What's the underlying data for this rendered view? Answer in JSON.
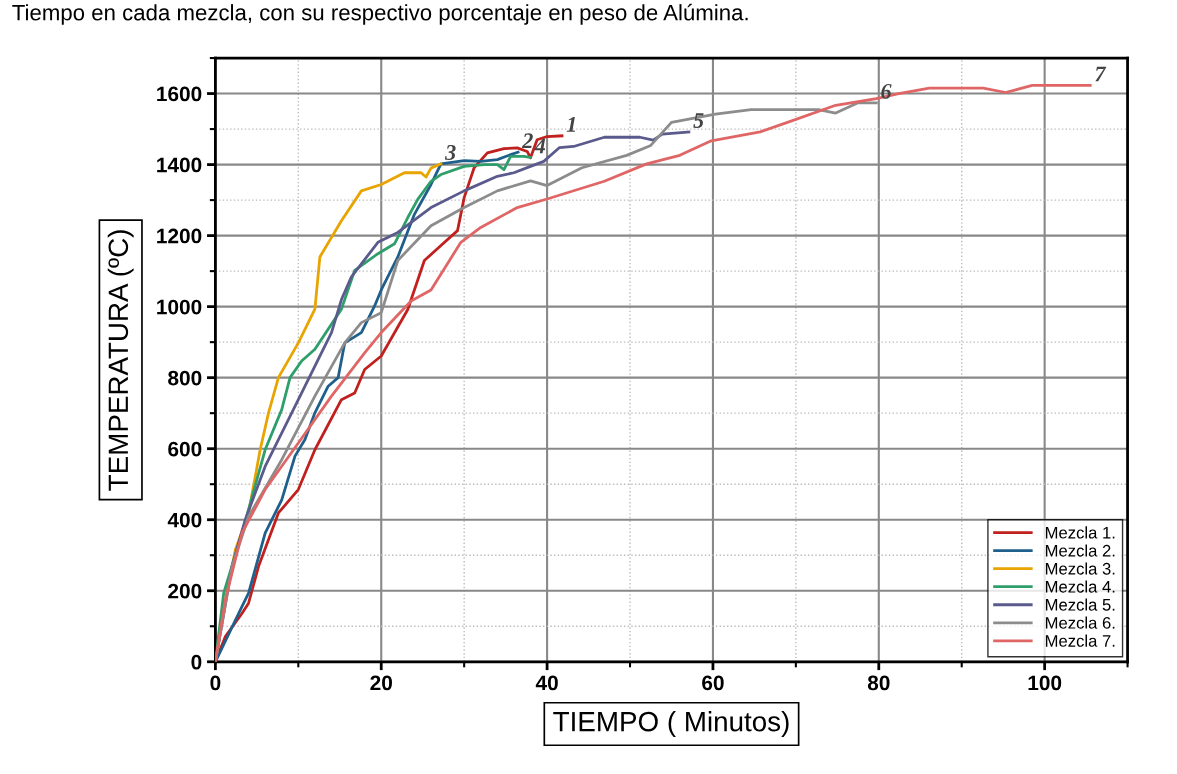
{
  "chart_data": {
    "type": "line",
    "xlabel": "TIEMPO ( Minutos)",
    "ylabel": "TEMPERATURA (ºC)",
    "annotations": [
      "Tiempo en cada mezcla, con su respectivo porcentaje en peso de Alúmina.",
      {
        "text": "1",
        "x": 41.8,
        "y": 1481
      },
      {
        "text": "2",
        "x": 36.5,
        "y": 1435
      },
      {
        "text": "3",
        "x": 27.2,
        "y": 1402
      },
      {
        "text": "4",
        "x": 38,
        "y": 1420
      },
      {
        "text": "5",
        "x": 57.1,
        "y": 1492
      },
      {
        "text": "6",
        "x": 79.7,
        "y": 1574
      },
      {
        "text": "7",
        "x": 105.5,
        "y": 1623
      }
    ],
    "xlim": [
      0,
      110
    ],
    "ylim": [
      0,
      1700
    ],
    "xticks": [
      0,
      20,
      40,
      60,
      80,
      100
    ],
    "yticks": [
      0,
      200,
      400,
      600,
      800,
      1000,
      1200,
      1400,
      1600
    ],
    "grid": true,
    "legend": "bottom right",
    "marker": "none",
    "line_style": "solid",
    "series": [
      {
        "name": "Mezcla 1.",
        "color": "#c0201e",
        "x": [
          0,
          1.2,
          3.2,
          4,
          5.2,
          7.6,
          10,
          12,
          15.2,
          16.8,
          18,
          20,
          23.2,
          25.2,
          27.2,
          29.2,
          30,
          31.2,
          32.8,
          34.8,
          36.4,
          37.6,
          38,
          38.8,
          40,
          41.8
        ],
        "values": [
          0,
          71,
          136,
          165,
          268,
          419,
          485,
          597,
          738,
          757,
          823,
          861,
          992,
          1130,
          1172,
          1214,
          1307,
          1391,
          1433,
          1445,
          1447,
          1437,
          1419,
          1470,
          1479,
          1481
        ]
      },
      {
        "name": "Mezcla 2.",
        "color": "#1f5f8b",
        "x": [
          0,
          3.2,
          4,
          6,
          8,
          9.6,
          10.8,
          12,
          13.6,
          14.8,
          15.6,
          17.6,
          19.2,
          20,
          22,
          24,
          26,
          27.2,
          30,
          32,
          34,
          35.6,
          36.5
        ],
        "values": [
          0,
          155,
          193,
          362,
          456,
          579,
          626,
          701,
          776,
          800,
          898,
          927,
          1002,
          1047,
          1140,
          1260,
          1344,
          1402,
          1411,
          1409,
          1414,
          1428,
          1435
        ]
      },
      {
        "name": "Mezcla 3.",
        "color": "#e8a400",
        "x": [
          0,
          1.2,
          2.4,
          4,
          5.4,
          6.4,
          7.6,
          10,
          12,
          12.6,
          15.2,
          17.6,
          20,
          22.8,
          24.8,
          25.4,
          26,
          27.2
        ],
        "values": [
          0,
          174,
          315,
          419,
          597,
          700,
          800,
          898,
          993,
          1140,
          1242,
          1326,
          1344,
          1377,
          1377,
          1365,
          1390,
          1402
        ]
      },
      {
        "name": "Mezcla 4.",
        "color": "#2e9e6b",
        "x": [
          0,
          1,
          3.2,
          6,
          8,
          9,
          10.4,
          12,
          15.2,
          16.8,
          19.6,
          21.6,
          23.2,
          24.4,
          26,
          27.2,
          30,
          32.4,
          34,
          34.8,
          35.6,
          37.2,
          38
        ],
        "values": [
          0,
          193,
          362,
          597,
          710,
          800,
          847,
          880,
          993,
          1102,
          1149,
          1177,
          1251,
          1302,
          1353,
          1372,
          1395,
          1400,
          1400,
          1386,
          1423,
          1423,
          1420
        ]
      },
      {
        "name": "Mezcla 5.",
        "color": "#5a5a8c",
        "x": [
          0,
          2,
          3.6,
          6,
          10,
          14,
          15.2,
          16.4,
          19.6,
          22,
          26,
          30,
          34,
          36,
          38,
          39.6,
          41.5,
          43.2,
          46.9,
          51.2,
          52.8,
          53.9,
          57.1
        ],
        "values": [
          0,
          268,
          400,
          550,
          738,
          927,
          1020,
          1084,
          1181,
          1209,
          1279,
          1326,
          1367,
          1377,
          1395,
          1409,
          1448,
          1451,
          1477,
          1477,
          1469,
          1486,
          1492
        ]
      },
      {
        "name": "Mezcla 6.",
        "color": "#8c8c8c",
        "x": [
          0,
          2,
          4,
          8,
          12,
          15.6,
          17.6,
          20,
          22,
          26,
          30,
          34,
          38,
          40,
          44.2,
          49.6,
          52.5,
          55,
          60.3,
          64.6,
          72.7,
          74.8,
          77.5,
          79.7
        ],
        "values": [
          0,
          268,
          409,
          569,
          748,
          898,
          955,
          983,
          1130,
          1228,
          1279,
          1326,
          1354,
          1341,
          1391,
          1426,
          1454,
          1519,
          1542,
          1555,
          1555,
          1545,
          1574,
          1574
        ]
      },
      {
        "name": "Mezcla 7.",
        "color": "#e06666",
        "x": [
          0,
          1.2,
          3.2,
          6,
          10,
          14,
          18,
          20,
          23.6,
          26,
          29.6,
          32,
          36.4,
          40,
          46.9,
          52,
          56,
          59.8,
          65.7,
          69.5,
          74.8,
          79.7,
          82.4,
          86.1,
          92.6,
          95.3,
          98.5,
          105.5
        ],
        "values": [
          0,
          174,
          362,
          485,
          616,
          748,
          870,
          927,
          1016,
          1047,
          1181,
          1223,
          1279,
          1303,
          1353,
          1402,
          1426,
          1467,
          1492,
          1523,
          1567,
          1586,
          1600,
          1615,
          1615,
          1603,
          1623,
          1623
        ]
      }
    ]
  }
}
